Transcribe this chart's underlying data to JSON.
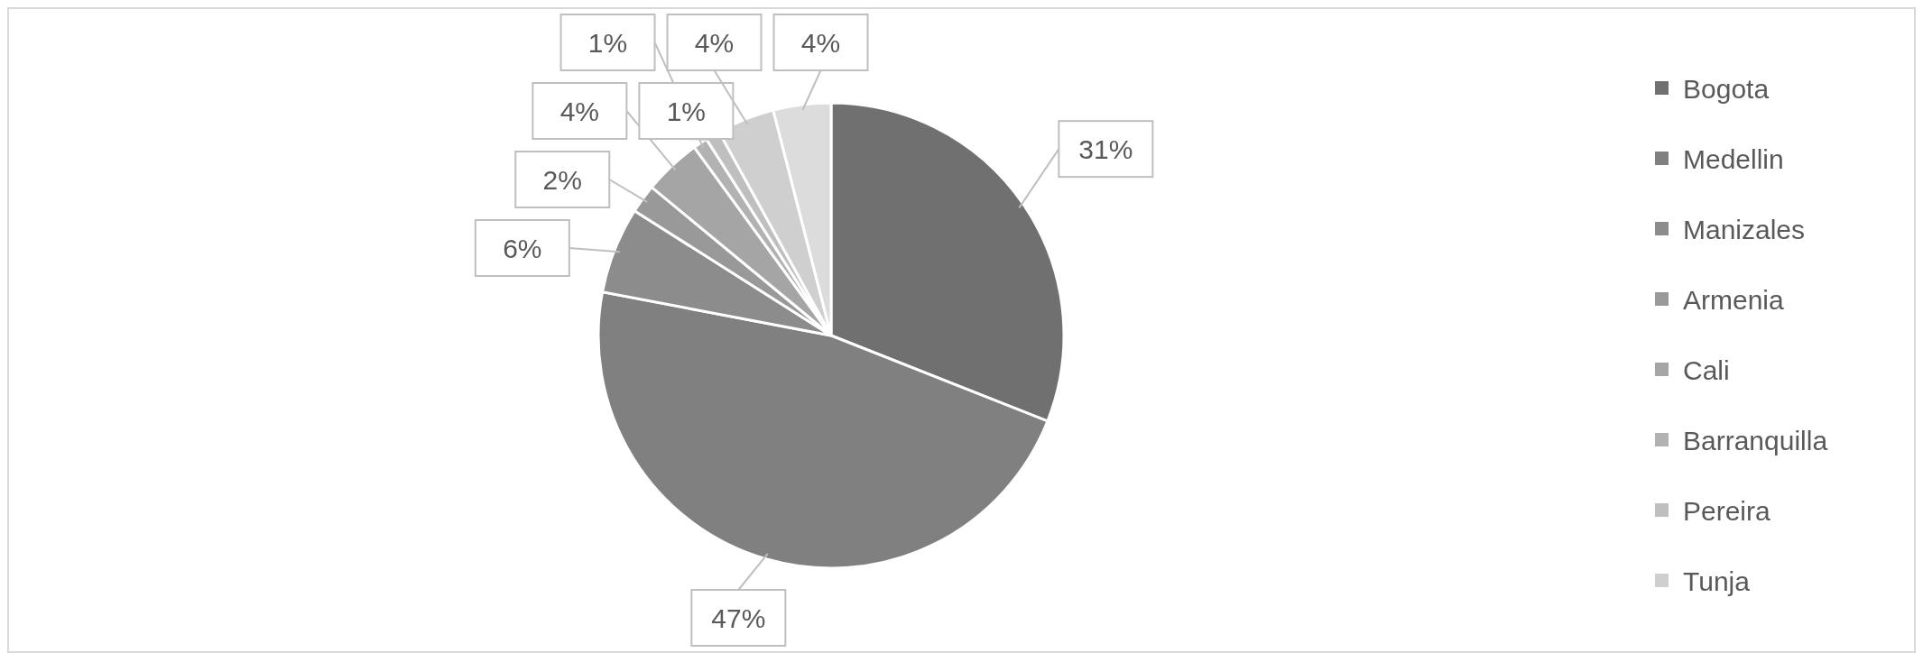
{
  "chart_data": {
    "type": "pie",
    "categories": [
      "Bogota",
      "Medellin",
      "Manizales",
      "Armenia",
      "Cali",
      "Barranquilla",
      "Pereira",
      "Tunja",
      null
    ],
    "values": [
      31,
      47,
      6,
      2,
      4,
      1,
      1,
      4,
      4
    ],
    "colors": [
      "#707070",
      "#808080",
      "#8c8c8c",
      "#999999",
      "#a5a5a5",
      "#b2b2b2",
      "#bfbfbf",
      "#cfcfcf",
      "#dcdcdc"
    ],
    "value_labels": [
      "31%",
      "47%",
      "6%",
      "2%",
      "4%",
      "1%",
      "1%",
      "4%",
      "4%"
    ],
    "legend": "right"
  }
}
